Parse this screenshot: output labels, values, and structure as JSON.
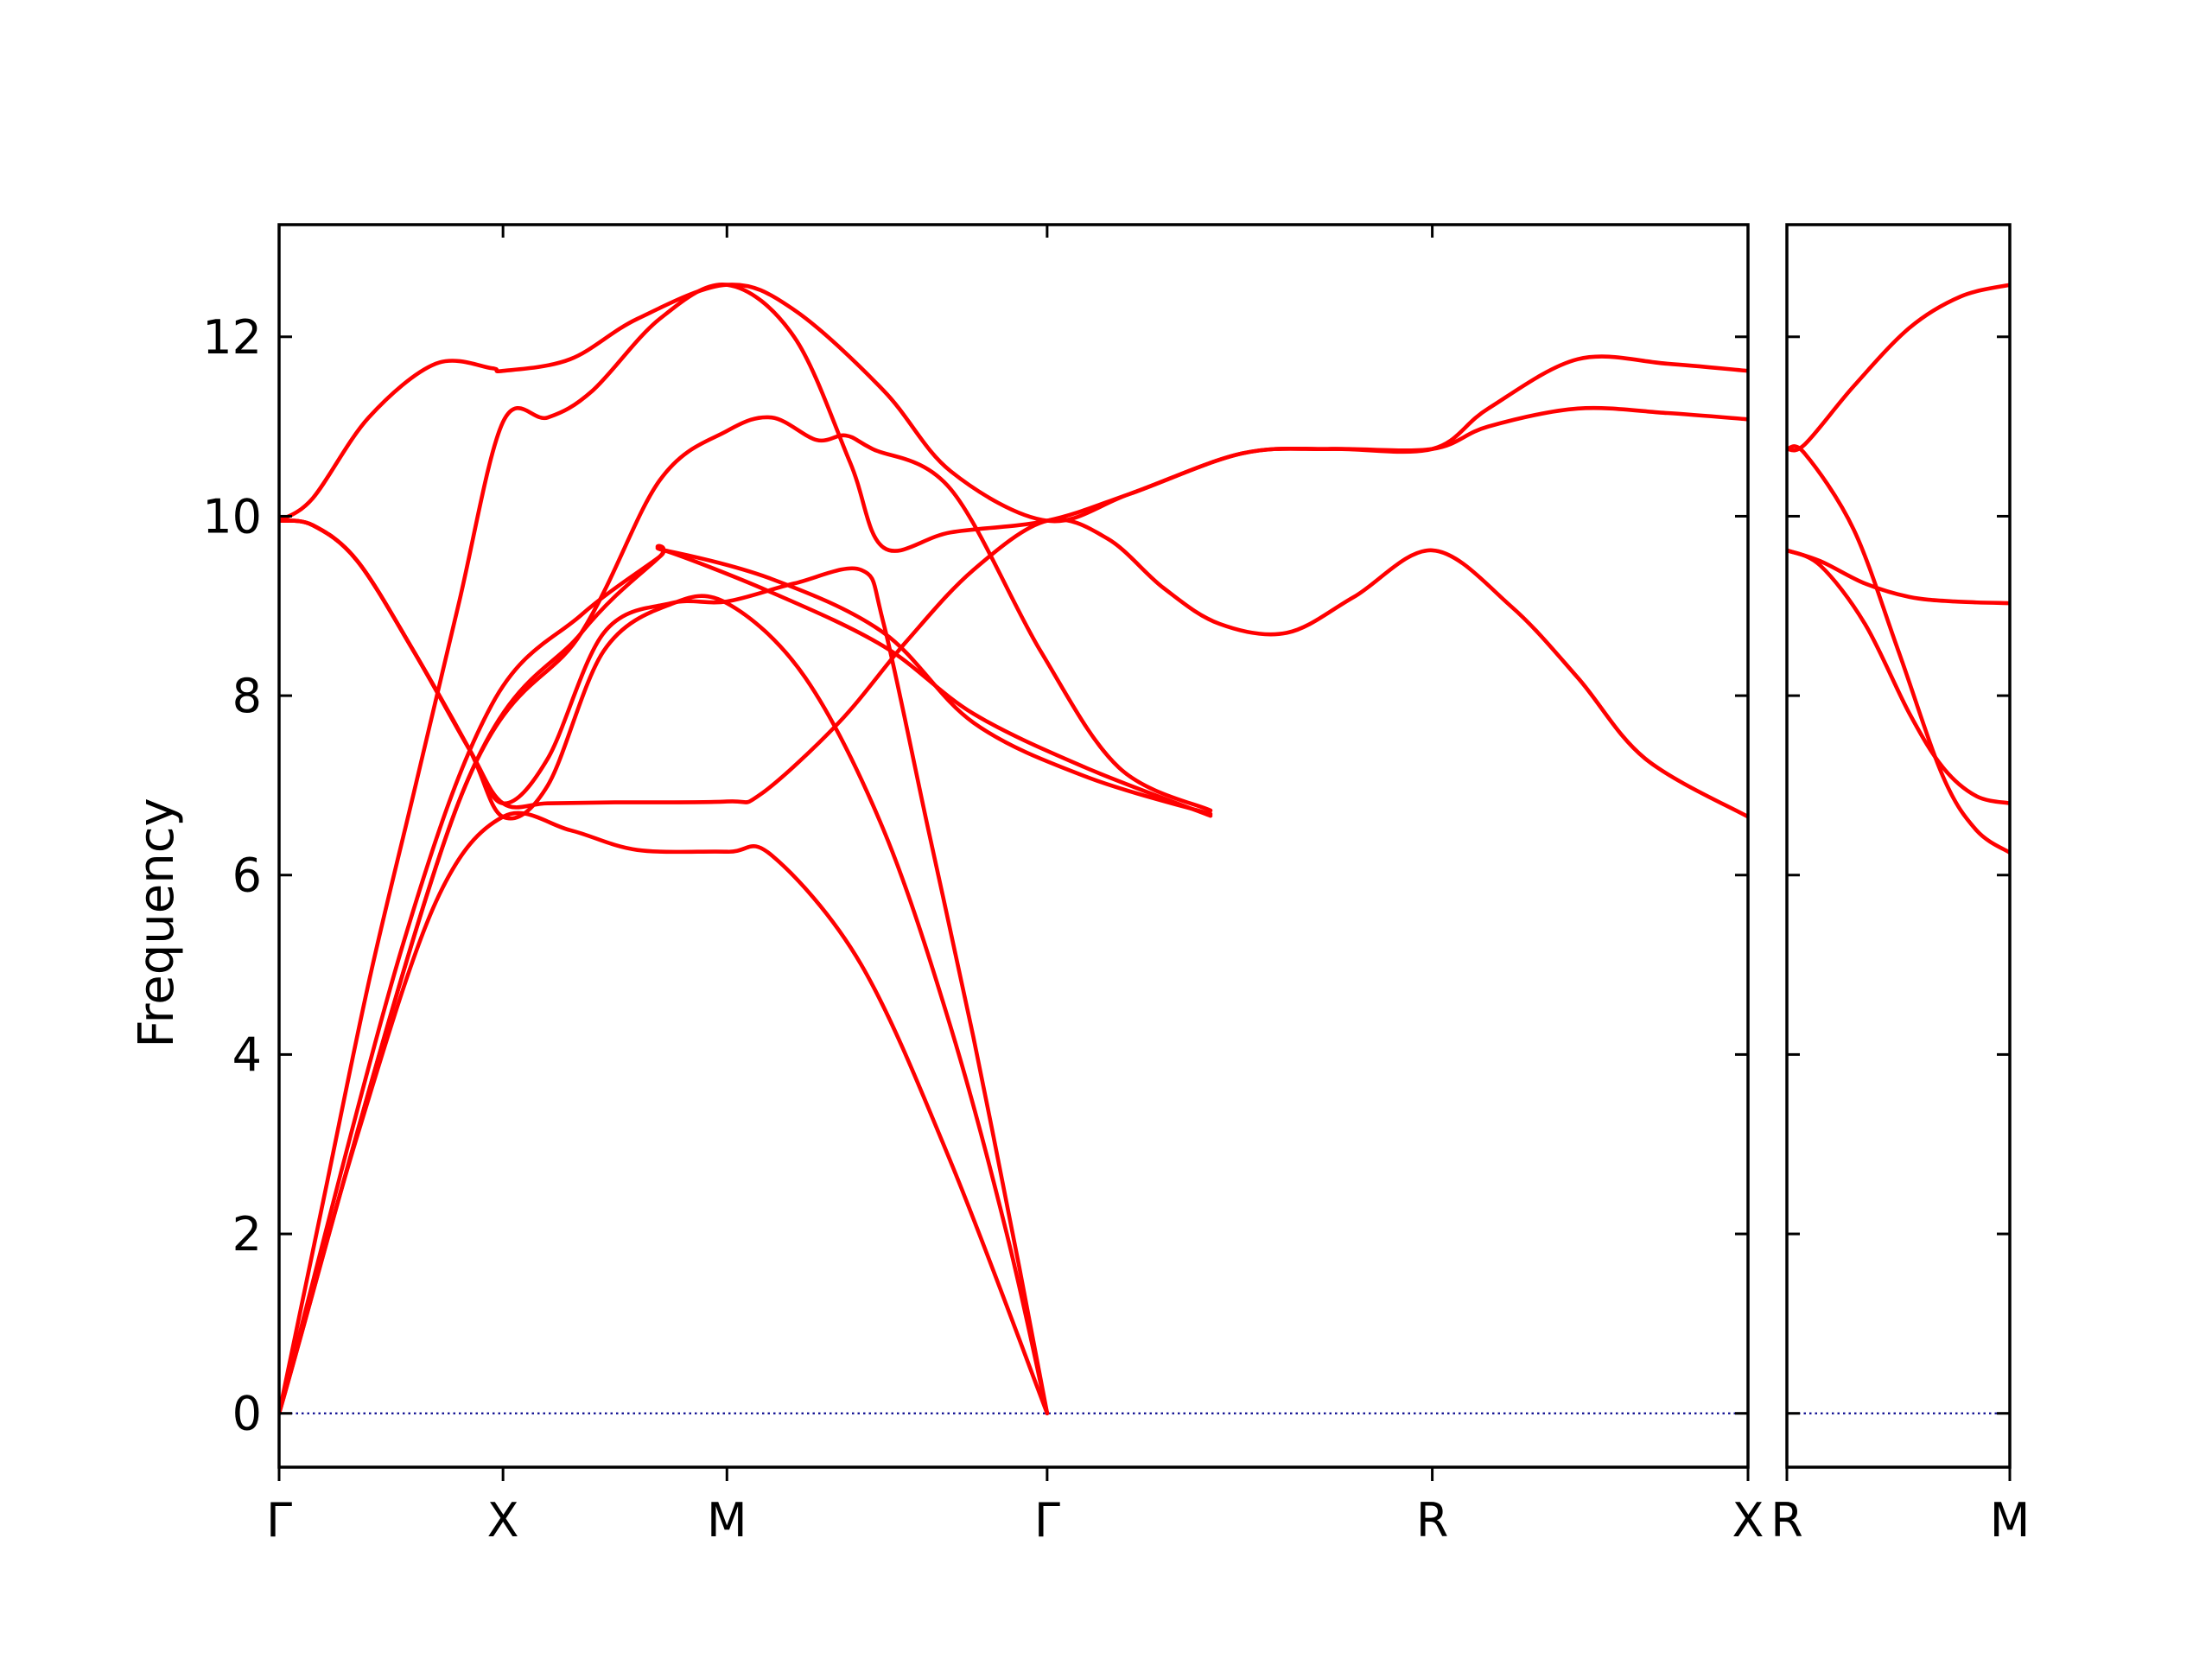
{
  "chart_data": {
    "type": "line",
    "title": "",
    "xlabel": "",
    "ylabel": "Frequency",
    "ylim": [
      -0.6,
      13.25
    ],
    "yticks": [
      0,
      2,
      4,
      6,
      8,
      10,
      12
    ],
    "ytick_labels": [
      "0",
      "2",
      "4",
      "6",
      "8",
      "10",
      "12"
    ],
    "grid": false,
    "legend": "none",
    "band_color": "#ff0000",
    "zero_line_color": "#00008b",
    "segments": [
      {
        "name": "Γ-X-M-Γ-R-X",
        "path_ticks": [
          0,
          1,
          2,
          3.43,
          5.15,
          6.56
        ],
        "path_labels": [
          "Γ",
          "X",
          "M",
          "Γ",
          "R",
          "X"
        ],
        "x_range": [
          0,
          6.56
        ],
        "bands": [
          [
            [
              0,
              0
            ],
            [
              0.35,
              3.1
            ],
            [
              0.7,
              5.7
            ],
            [
              1,
              6.65
            ],
            [
              1.3,
              6.5
            ],
            [
              1.6,
              6.28
            ],
            [
              2,
              6.26
            ],
            [
              2.2,
              6.22
            ],
            [
              2.6,
              5.0
            ],
            [
              3.0,
              2.8
            ],
            [
              3.43,
              0
            ]
          ],
          [
            [
              0,
              0
            ],
            [
              0.2,
              2.4
            ],
            [
              0.4,
              4.8
            ],
            [
              0.6,
              6.9
            ],
            [
              0.8,
              9.0
            ],
            [
              1,
              11.05
            ],
            [
              1.2,
              11.1
            ],
            [
              1.4,
              11.4
            ],
            [
              1.7,
              12.2
            ],
            [
              2,
              12.58
            ],
            [
              2.3,
              12.0
            ],
            [
              2.55,
              10.6
            ],
            [
              2.7,
              9.65
            ],
            [
              3.0,
              9.82
            ],
            [
              3.43,
              9.95
            ],
            [
              3.8,
              10.25
            ],
            [
              4.3,
              10.7
            ],
            [
              4.7,
              10.75
            ],
            [
              5.15,
              10.75
            ],
            [
              5.4,
              11.0
            ],
            [
              5.8,
              11.2
            ],
            [
              6.2,
              11.15
            ],
            [
              6.56,
              11.08
            ]
          ],
          [
            [
              0,
              9.95
            ],
            [
              0.15,
              9.9
            ],
            [
              0.35,
              9.5
            ],
            [
              0.6,
              8.5
            ],
            [
              0.85,
              7.4
            ],
            [
              1,
              6.8
            ],
            [
              1.2,
              6.8
            ],
            [
              1.5,
              6.81
            ],
            [
              2,
              6.82
            ],
            [
              2.15,
              6.9
            ],
            [
              2.5,
              7.7
            ],
            [
              2.8,
              8.6
            ],
            [
              3.1,
              9.4
            ],
            [
              3.43,
              9.95
            ],
            [
              3.7,
              9.75
            ],
            [
              3.95,
              9.2
            ],
            [
              4.2,
              8.8
            ],
            [
              4.5,
              8.7
            ],
            [
              4.8,
              9.1
            ],
            [
              5.15,
              9.62
            ],
            [
              5.5,
              9.0
            ],
            [
              5.8,
              8.2
            ],
            [
              6.1,
              7.3
            ],
            [
              6.56,
              6.65
            ]
          ],
          [
            [
              0,
              9.95
            ],
            [
              0.15,
              9.9
            ],
            [
              0.35,
              9.5
            ],
            [
              0.6,
              8.5
            ],
            [
              0.85,
              7.4
            ],
            [
              1,
              6.65
            ],
            [
              1.2,
              7.0
            ],
            [
              1.45,
              8.5
            ],
            [
              1.75,
              9.02
            ],
            [
              2,
              9.03
            ],
            [
              2.35,
              8.2
            ],
            [
              2.7,
              6.5
            ],
            [
              3.0,
              4.3
            ],
            [
              3.25,
              2.0
            ],
            [
              3.43,
              0
            ]
          ],
          [
            [
              0,
              9.95
            ],
            [
              0.15,
              10.2
            ],
            [
              0.4,
              11.1
            ],
            [
              0.7,
              11.7
            ],
            [
              0.95,
              11.65
            ],
            [
              1,
              11.62
            ],
            [
              1.3,
              11.75
            ],
            [
              1.6,
              12.2
            ],
            [
              2,
              12.58
            ],
            [
              2.3,
              12.3
            ],
            [
              2.7,
              11.4
            ],
            [
              3.0,
              10.5
            ],
            [
              3.43,
              9.95
            ],
            [
              3.8,
              10.25
            ],
            [
              4.3,
              10.7
            ],
            [
              4.7,
              10.75
            ],
            [
              5.15,
              10.75
            ],
            [
              5.4,
              11.2
            ],
            [
              5.8,
              11.75
            ],
            [
              6.2,
              11.7
            ],
            [
              6.56,
              11.62
            ]
          ],
          [
            [
              0,
              9.95
            ],
            [
              0.15,
              9.9
            ],
            [
              0.35,
              9.5
            ],
            [
              0.6,
              8.5
            ],
            [
              0.85,
              7.4
            ],
            [
              1,
              6.8
            ],
            [
              1.2,
              7.3
            ],
            [
              1.45,
              8.7
            ],
            [
              1.75,
              9.03
            ],
            [
              2,
              9.05
            ],
            [
              2.3,
              9.25
            ],
            [
              2.6,
              9.4
            ],
            [
              2.7,
              8.8
            ],
            [
              2.9,
              6.5
            ],
            [
              3.1,
              4.2
            ],
            [
              3.3,
              1.7
            ],
            [
              3.43,
              0
            ]
          ],
          [
            [
              0,
              0
            ],
            [
              0.8,
              6.8
            ],
            [
              1.35,
              8.7
            ],
            [
              1.7,
              10.4
            ],
            [
              2.0,
              10.95
            ],
            [
              2.2,
              11.1
            ],
            [
              2.4,
              10.85
            ],
            [
              2.53,
              10.9
            ],
            [
              2.65,
              10.75
            ],
            [
              3.0,
              10.3
            ],
            [
              3.4,
              8.5
            ],
            [
              3.75,
              7.2
            ],
            [
              4.16,
              6.72
            ]
          ],
          [
            [
              0,
              0
            ],
            [
              0.55,
              5.2
            ],
            [
              0.95,
              7.9
            ],
            [
              1.35,
              8.9
            ],
            [
              1.7,
              9.55
            ],
            [
              1.72,
              9.62
            ],
            [
              2.2,
              9.3
            ],
            [
              2.7,
              8.7
            ],
            [
              3.1,
              7.7
            ],
            [
              3.6,
              7.1
            ],
            [
              4.16,
              6.68
            ]
          ],
          [
            [
              0,
              0
            ],
            [
              0.8,
              6.8
            ],
            [
              1.35,
              8.7
            ],
            [
              1.7,
              9.55
            ],
            [
              1.72,
              9.62
            ],
            [
              2.2,
              9.15
            ],
            [
              2.7,
              8.55
            ],
            [
              3.1,
              7.8
            ],
            [
              3.6,
              7.2
            ],
            [
              4.16,
              6.66
            ]
          ]
        ]
      },
      {
        "name": "R-M",
        "path_ticks": [
          0,
          1
        ],
        "path_labels": [
          "R",
          "M"
        ],
        "x_range": [
          0,
          1
        ],
        "bands": [
          [
            [
              0,
              10.75
            ],
            [
              0.08,
              10.8
            ],
            [
              0.3,
              11.45
            ],
            [
              0.55,
              12.1
            ],
            [
              0.78,
              12.45
            ],
            [
              1,
              12.58
            ]
          ],
          [
            [
              0,
              10.75
            ],
            [
              0.08,
              10.7
            ],
            [
              0.3,
              9.85
            ],
            [
              0.5,
              8.5
            ],
            [
              0.7,
              7.1
            ],
            [
              0.85,
              6.5
            ],
            [
              1,
              6.25
            ]
          ],
          [
            [
              0,
              9.62
            ],
            [
              0.15,
              9.45
            ],
            [
              0.35,
              8.8
            ],
            [
              0.55,
              7.8
            ],
            [
              0.7,
              7.2
            ],
            [
              0.85,
              6.88
            ],
            [
              1,
              6.8
            ]
          ],
          [
            [
              0,
              9.62
            ],
            [
              0.15,
              9.5
            ],
            [
              0.35,
              9.25
            ],
            [
              0.55,
              9.1
            ],
            [
              0.75,
              9.05
            ],
            [
              1,
              9.03
            ]
          ]
        ]
      }
    ]
  }
}
